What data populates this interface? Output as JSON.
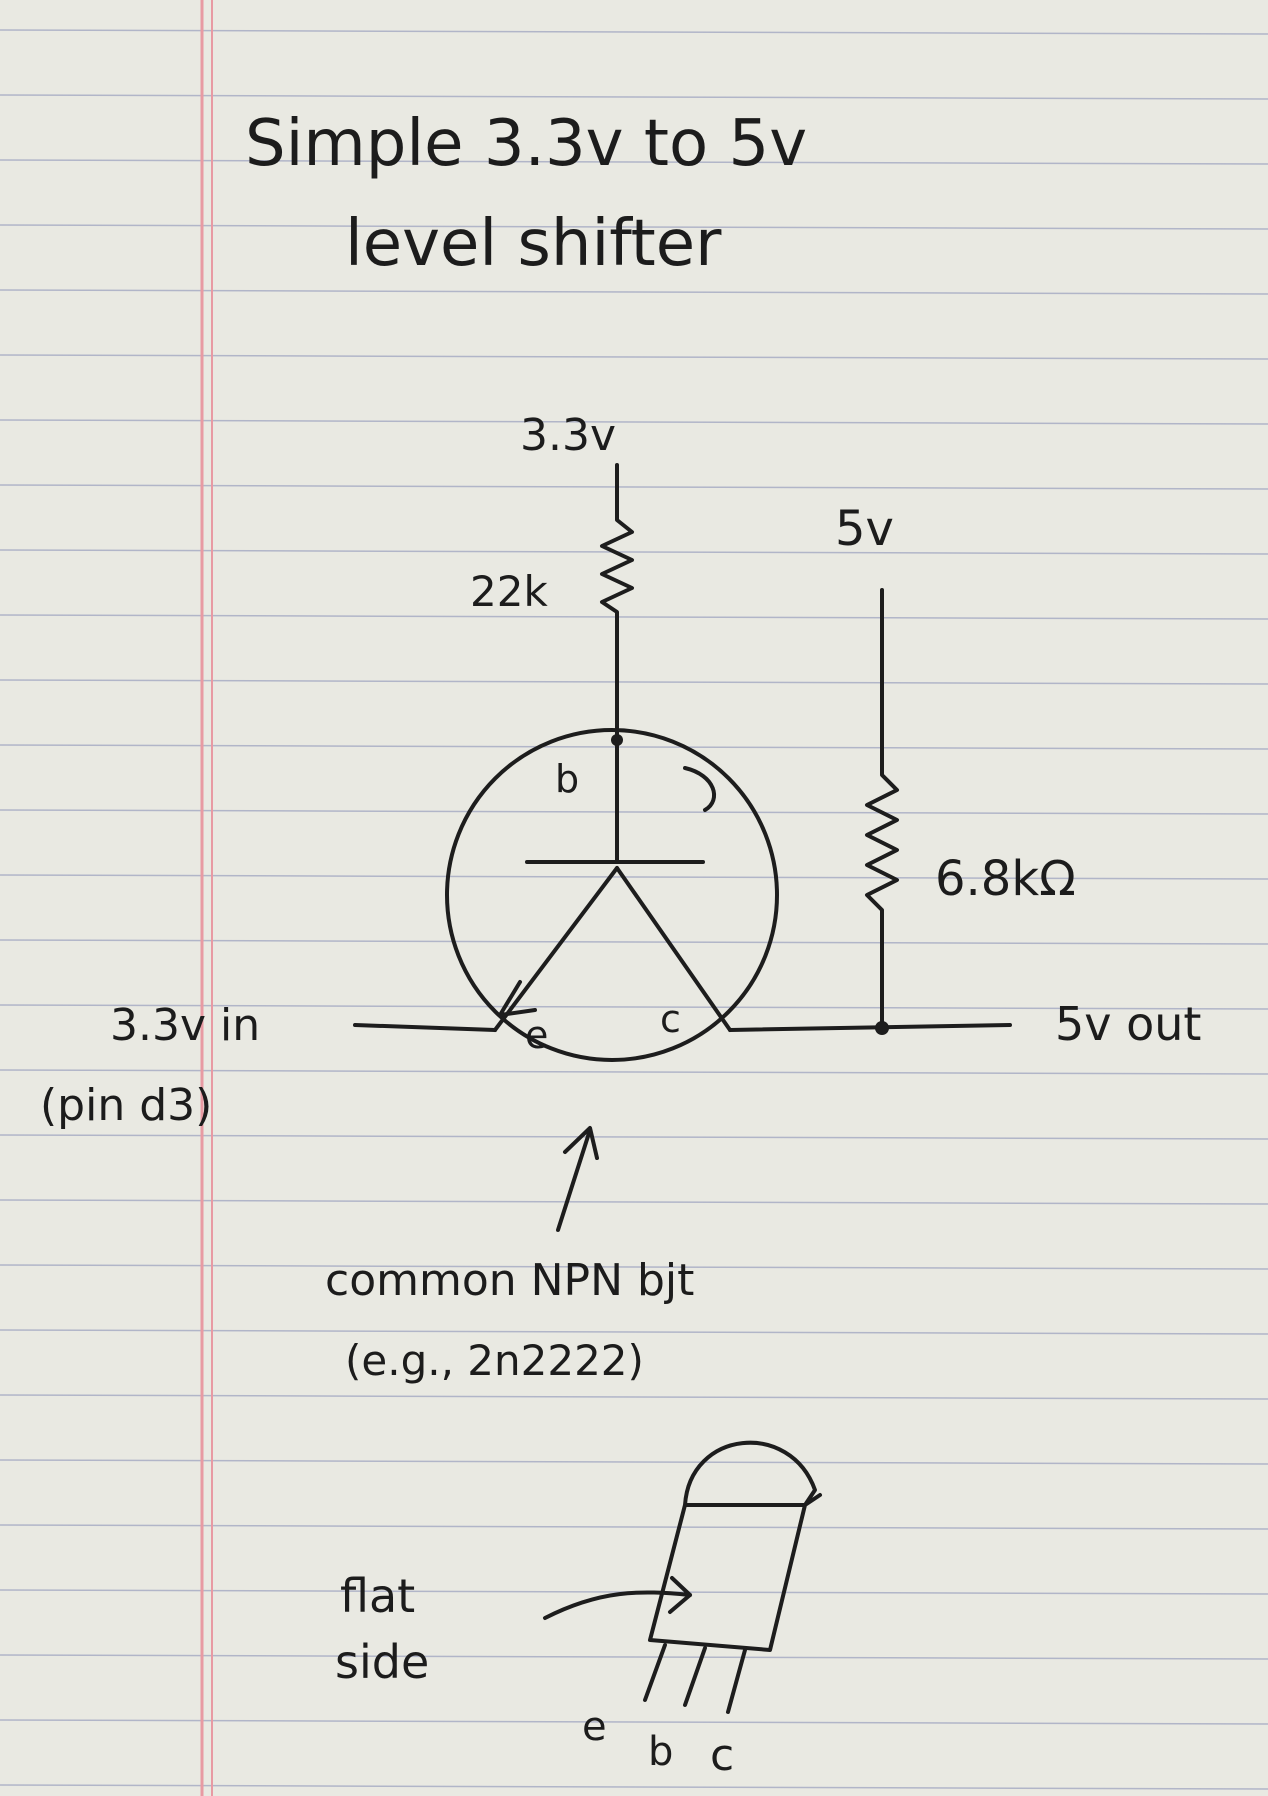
{
  "title": {
    "line1": "Simple 3.3v to 5v",
    "line2": "level shifter"
  },
  "labels": {
    "supply_3v3": "3.3v",
    "resistor_base": "22k",
    "supply_5v": "5v",
    "resistor_collector": "6.8kΩ",
    "base_pin": "b",
    "emitter_pin": "e",
    "collector_pin": "c",
    "input": "3.3v in",
    "input_pin": "(pin d3)",
    "output": "5v out",
    "transistor_desc": "common NPN bjt",
    "transistor_example": "(e.g., 2n2222)",
    "flat_side_1": "flat",
    "flat_side_2": "side",
    "leg_e": "e",
    "leg_b": "b",
    "leg_c": "c"
  },
  "colors": {
    "paper": "#e9e9e2",
    "rule_line": "#8c93b8",
    "margin_line": "#e89aa3",
    "ink": "#1d1d1d"
  }
}
